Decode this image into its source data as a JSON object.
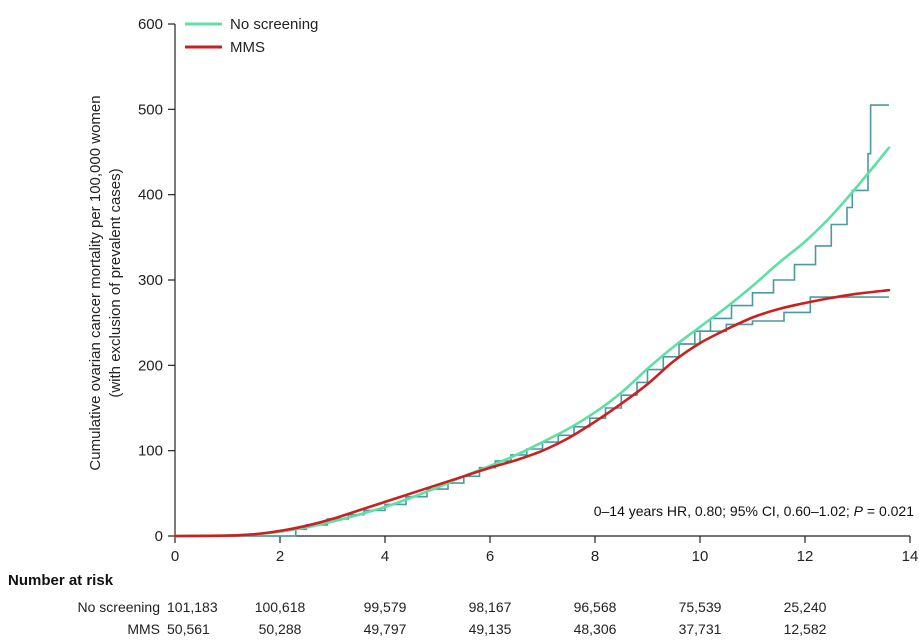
{
  "chart_data": {
    "type": "line",
    "ylabel_line1": "Cumulative ovarian cancer mortality per 100,000 women",
    "ylabel_line2": "(with exclusion of prevalent cases)",
    "xlim": [
      0,
      14
    ],
    "ylim": [
      0,
      600
    ],
    "x_ticks": [
      0,
      2,
      4,
      6,
      8,
      10,
      12,
      14
    ],
    "y_ticks": [
      0,
      100,
      200,
      300,
      400,
      500,
      600
    ],
    "legend_position": "top-left",
    "annotation": {
      "prefix": "0–14 years HR, 0.80; 95% CI, 0.60–1.02; ",
      "p_symbol": "P",
      "suffix": " = 0.021"
    },
    "series": [
      {
        "name": "No screening",
        "color": "#5ee0a4",
        "points": [
          [
            0,
            0
          ],
          [
            1,
            0.5
          ],
          [
            1.5,
            2
          ],
          [
            2,
            5
          ],
          [
            2.5,
            10
          ],
          [
            3,
            17
          ],
          [
            3.5,
            25
          ],
          [
            4,
            34
          ],
          [
            4.5,
            45
          ],
          [
            5,
            57
          ],
          [
            5.5,
            70
          ],
          [
            6,
            82
          ],
          [
            6.5,
            95
          ],
          [
            7,
            110
          ],
          [
            7.5,
            126
          ],
          [
            8,
            145
          ],
          [
            8.5,
            168
          ],
          [
            9,
            196
          ],
          [
            9.5,
            222
          ],
          [
            10,
            245
          ],
          [
            10.5,
            268
          ],
          [
            11,
            293
          ],
          [
            11.5,
            320
          ],
          [
            12,
            345
          ],
          [
            12.5,
            375
          ],
          [
            13,
            410
          ],
          [
            13.6,
            455
          ]
        ]
      },
      {
        "name": "MMS",
        "color": "#cc1f1f",
        "points": [
          [
            0,
            0
          ],
          [
            1,
            0.5
          ],
          [
            1.5,
            2
          ],
          [
            2,
            6
          ],
          [
            2.5,
            12
          ],
          [
            3,
            20
          ],
          [
            3.5,
            30
          ],
          [
            4,
            40
          ],
          [
            4.5,
            50
          ],
          [
            5,
            60
          ],
          [
            5.5,
            70
          ],
          [
            6,
            80
          ],
          [
            6.5,
            89
          ],
          [
            7,
            100
          ],
          [
            7.5,
            115
          ],
          [
            8,
            134
          ],
          [
            8.5,
            155
          ],
          [
            9,
            178
          ],
          [
            9.5,
            205
          ],
          [
            10,
            226
          ],
          [
            10.5,
            242
          ],
          [
            11,
            256
          ],
          [
            11.5,
            266
          ],
          [
            12,
            273
          ],
          [
            12.5,
            279
          ],
          [
            13,
            284
          ],
          [
            13.6,
            288
          ]
        ]
      }
    ],
    "km_step": {
      "color": "#4a9aa0",
      "points": [
        [
          0,
          0
        ],
        [
          2.3,
          0
        ],
        [
          2.3,
          8
        ],
        [
          2.5,
          8
        ],
        [
          2.5,
          13
        ],
        [
          2.9,
          13
        ],
        [
          2.9,
          20
        ],
        [
          3.3,
          20
        ],
        [
          3.3,
          25
        ],
        [
          3.6,
          25
        ],
        [
          3.6,
          30
        ],
        [
          4,
          30
        ],
        [
          4,
          37
        ],
        [
          4.4,
          37
        ],
        [
          4.4,
          46
        ],
        [
          4.8,
          46
        ],
        [
          4.8,
          55
        ],
        [
          5.2,
          55
        ],
        [
          5.2,
          62
        ],
        [
          5.5,
          62
        ],
        [
          5.5,
          70
        ],
        [
          5.8,
          70
        ],
        [
          5.8,
          80
        ],
        [
          6.1,
          80
        ],
        [
          6.1,
          88
        ],
        [
          6.4,
          88
        ],
        [
          6.4,
          95
        ],
        [
          6.7,
          95
        ],
        [
          6.7,
          102
        ],
        [
          7,
          102
        ],
        [
          7,
          110
        ],
        [
          7.3,
          110
        ],
        [
          7.3,
          118
        ],
        [
          7.6,
          118
        ],
        [
          7.6,
          128
        ],
        [
          7.9,
          128
        ],
        [
          7.9,
          138
        ],
        [
          8.2,
          138
        ],
        [
          8.2,
          150
        ],
        [
          8.5,
          150
        ],
        [
          8.5,
          165
        ],
        [
          8.8,
          165
        ],
        [
          8.8,
          180
        ],
        [
          9,
          180
        ],
        [
          9,
          195
        ],
        [
          9.3,
          195
        ],
        [
          9.3,
          210
        ],
        [
          9.6,
          210
        ],
        [
          9.6,
          225
        ],
        [
          10,
          225
        ],
        [
          10,
          240
        ],
        [
          10.5,
          240
        ],
        [
          10.5,
          248
        ],
        [
          11,
          248
        ],
        [
          11,
          252
        ],
        [
          11.6,
          252
        ],
        [
          11.6,
          262
        ],
        [
          12.1,
          262
        ],
        [
          12.1,
          280
        ],
        [
          13.6,
          280
        ]
      ]
    },
    "km_step_upper": {
      "color": "#4a9aa0",
      "points": [
        [
          9.6,
          225
        ],
        [
          9.9,
          225
        ],
        [
          9.9,
          240
        ],
        [
          10.2,
          240
        ],
        [
          10.2,
          255
        ],
        [
          10.6,
          255
        ],
        [
          10.6,
          270
        ],
        [
          11,
          270
        ],
        [
          11,
          285
        ],
        [
          11.4,
          285
        ],
        [
          11.4,
          300
        ],
        [
          11.8,
          300
        ],
        [
          11.8,
          318
        ],
        [
          12.2,
          318
        ],
        [
          12.2,
          340
        ],
        [
          12.5,
          340
        ],
        [
          12.5,
          365
        ],
        [
          12.8,
          365
        ],
        [
          12.8,
          385
        ],
        [
          12.9,
          385
        ],
        [
          12.9,
          405
        ],
        [
          13.2,
          405
        ],
        [
          13.2,
          448
        ],
        [
          13.25,
          448
        ],
        [
          13.25,
          505
        ],
        [
          13.6,
          505
        ]
      ]
    },
    "risk_table": {
      "title": "Number at risk",
      "rows": [
        {
          "label": "No screening",
          "values": [
            "101,183",
            "100,618",
            "99,579",
            "98,167",
            "96,568",
            "75,539",
            "25,240"
          ]
        },
        {
          "label": "MMS",
          "values": [
            "50,561",
            "50,288",
            "49,797",
            "49,135",
            "48,306",
            "37,731",
            "12,582"
          ]
        }
      ],
      "x_positions": [
        0,
        2,
        4,
        6,
        8,
        10,
        12
      ]
    }
  }
}
